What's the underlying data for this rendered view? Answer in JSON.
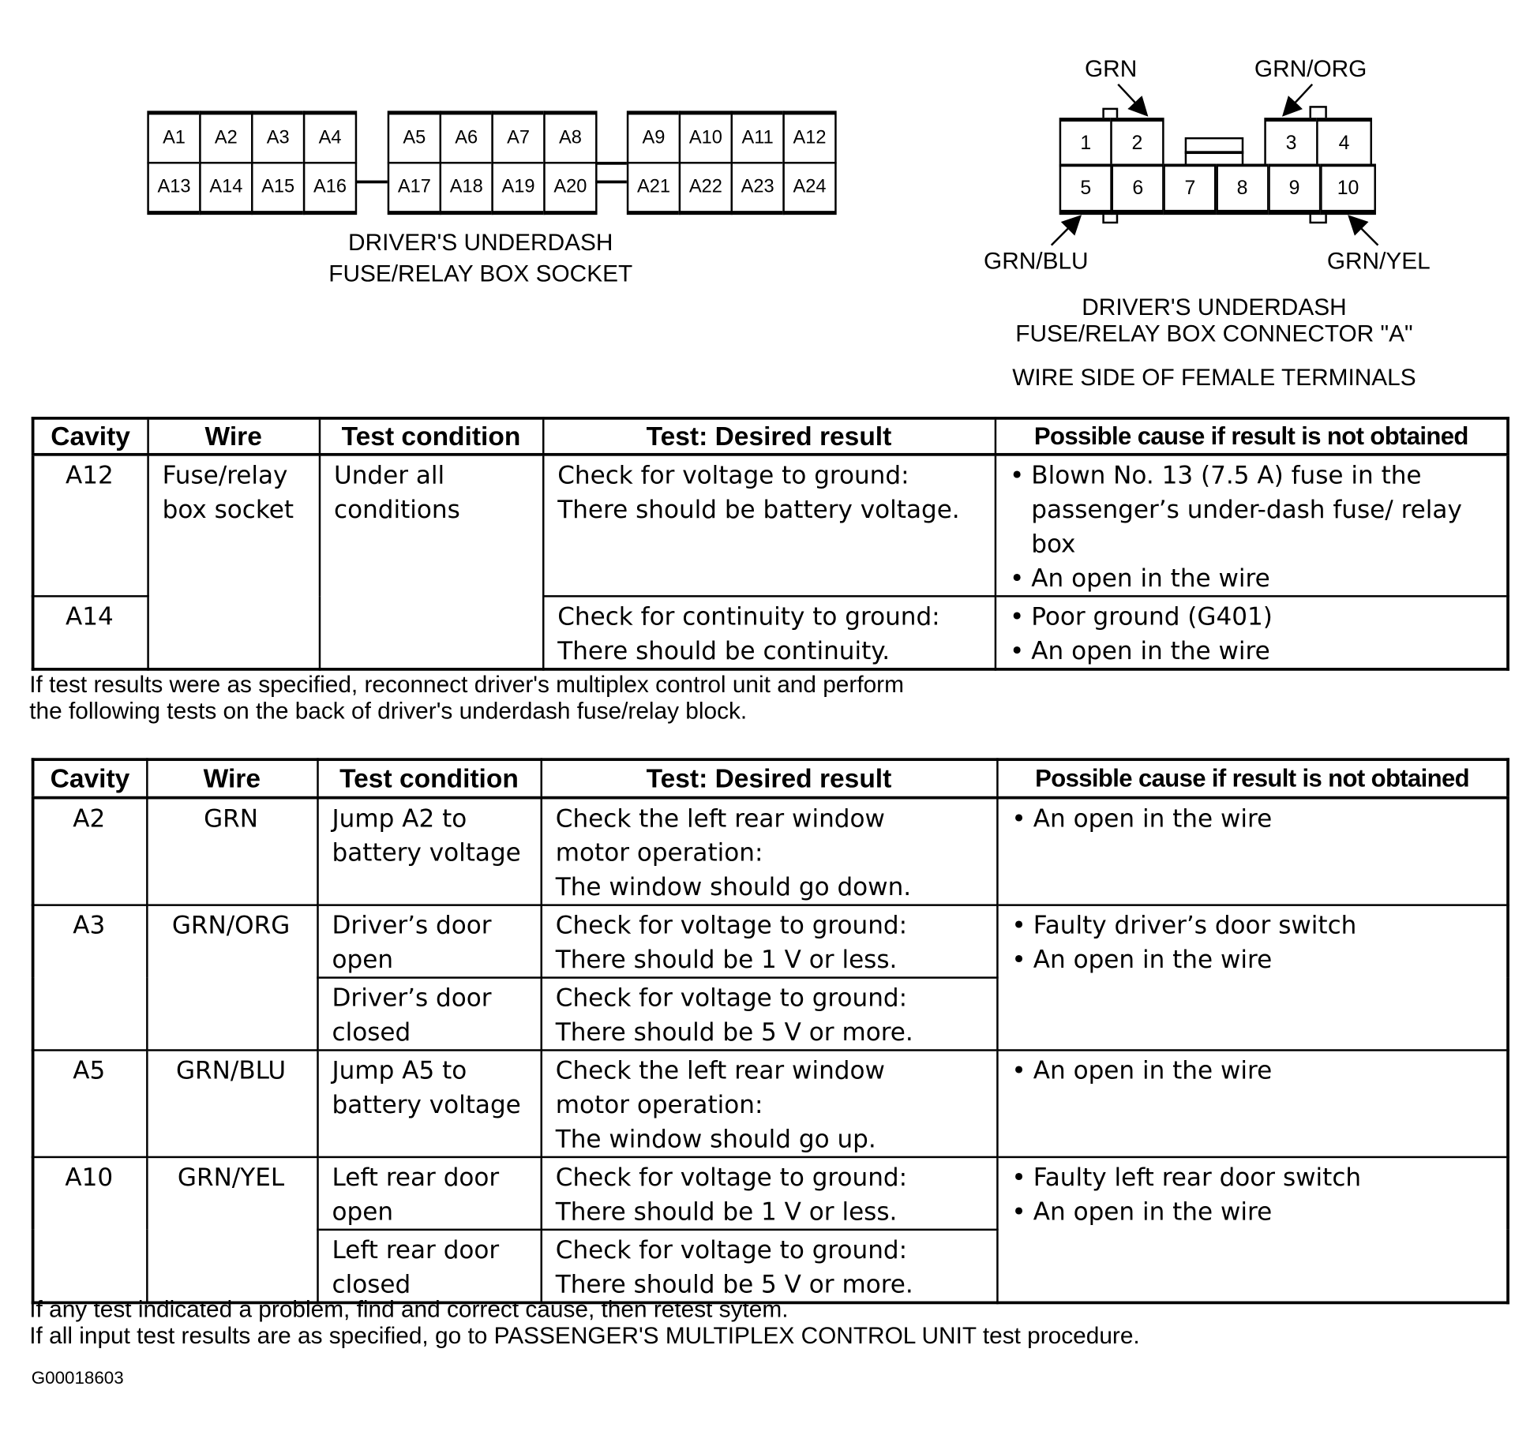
{
  "socket": {
    "cells_top": [
      "A1",
      "A2",
      "A3",
      "A4",
      "A5",
      "A6",
      "A7",
      "A8",
      "A9",
      "A10",
      "A11",
      "A12"
    ],
    "cells_bottom": [
      "A13",
      "A14",
      "A15",
      "A16",
      "A17",
      "A18",
      "A19",
      "A20",
      "A21",
      "A22",
      "A23",
      "A24"
    ],
    "caption": [
      "DRIVER'S UNDERDASH",
      "FUSE/RELAY BOX SOCKET"
    ]
  },
  "connector": {
    "top": [
      "1",
      "2",
      "3",
      "4"
    ],
    "bottom": [
      "5",
      "6",
      "7",
      "8",
      "9",
      "10"
    ],
    "wire_labels": {
      "grn": "GRN",
      "grn_org": "GRN/ORG",
      "grn_blu": "GRN/BLU",
      "grn_yel": "GRN/YEL"
    },
    "caption": [
      "DRIVER'S  UNDERDASH",
      "FUSE/RELAY BOX CONNECTOR \"A\"",
      "WIRE SIDE OF FEMALE TERMINALS"
    ]
  },
  "headers": [
    "Cavity",
    "Wire",
    "Test condition",
    "Test: Desired result",
    "Possible cause if result is not obtained"
  ],
  "table1": {
    "wire": [
      "Fuse/relay",
      "box socket"
    ],
    "condition": [
      "Under all",
      "conditions"
    ],
    "rows": [
      {
        "cavity": "A12",
        "result": [
          "Check for voltage to ground:",
          "There should be battery voltage."
        ],
        "causes": [
          "Blown No. 13 (7.5 A) fuse in the passenger’s under-dash fuse/ relay box",
          "An open in the wire"
        ]
      },
      {
        "cavity": "A14",
        "result": [
          "Check for continuity to ground:",
          "There should be continuity."
        ],
        "causes": [
          "Poor ground (G401)",
          "An open in the wire"
        ]
      }
    ]
  },
  "note1": [
    "If test results were as specified, reconnect driver's multiplex control unit and perform",
    "the following tests on the back of driver's underdash fuse/relay block."
  ],
  "table2": [
    {
      "cavity": "A2",
      "wire": "GRN",
      "conds": [
        {
          "condition": "Jump A2 to battery voltage",
          "result": [
            "Check the left rear window",
            "motor operation:",
            "The window should go down."
          ]
        }
      ],
      "causes": [
        "An open in the wire"
      ]
    },
    {
      "cavity": "A3",
      "wire": "GRN/ORG",
      "conds": [
        {
          "condition": "Driver’s door open",
          "result": [
            "Check for voltage to ground:",
            "There should be 1 V or less."
          ]
        },
        {
          "condition": "Driver’s door closed",
          "result": [
            "Check for voltage to ground:",
            "There should be 5 V or more."
          ]
        }
      ],
      "causes": [
        "Faulty driver’s door switch",
        "An open in the wire"
      ]
    },
    {
      "cavity": "A5",
      "wire": "GRN/BLU",
      "conds": [
        {
          "condition": "Jump A5 to battery voltage",
          "result": [
            "Check the left rear window",
            "motor operation:",
            "The window should go up."
          ]
        }
      ],
      "causes": [
        "An open in the wire"
      ]
    },
    {
      "cavity": "A10",
      "wire": "GRN/YEL",
      "conds": [
        {
          "condition": "Left rear door open",
          "result": [
            "Check for voltage to ground:",
            "There should be 1 V or less."
          ]
        },
        {
          "condition": "Left rear door closed",
          "result": [
            "Check for voltage to ground:",
            "There should be 5 V or more."
          ]
        }
      ],
      "causes": [
        "Faulty left rear door switch",
        "An open in the wire"
      ]
    }
  ],
  "note2": [
    "If any test indicated a problem, find and correct cause, then retest sytem.",
    "If all input test results are as specified, go to PASSENGER'S MULTIPLEX CONTROL UNIT test procedure."
  ],
  "figure_id": "G00018603"
}
